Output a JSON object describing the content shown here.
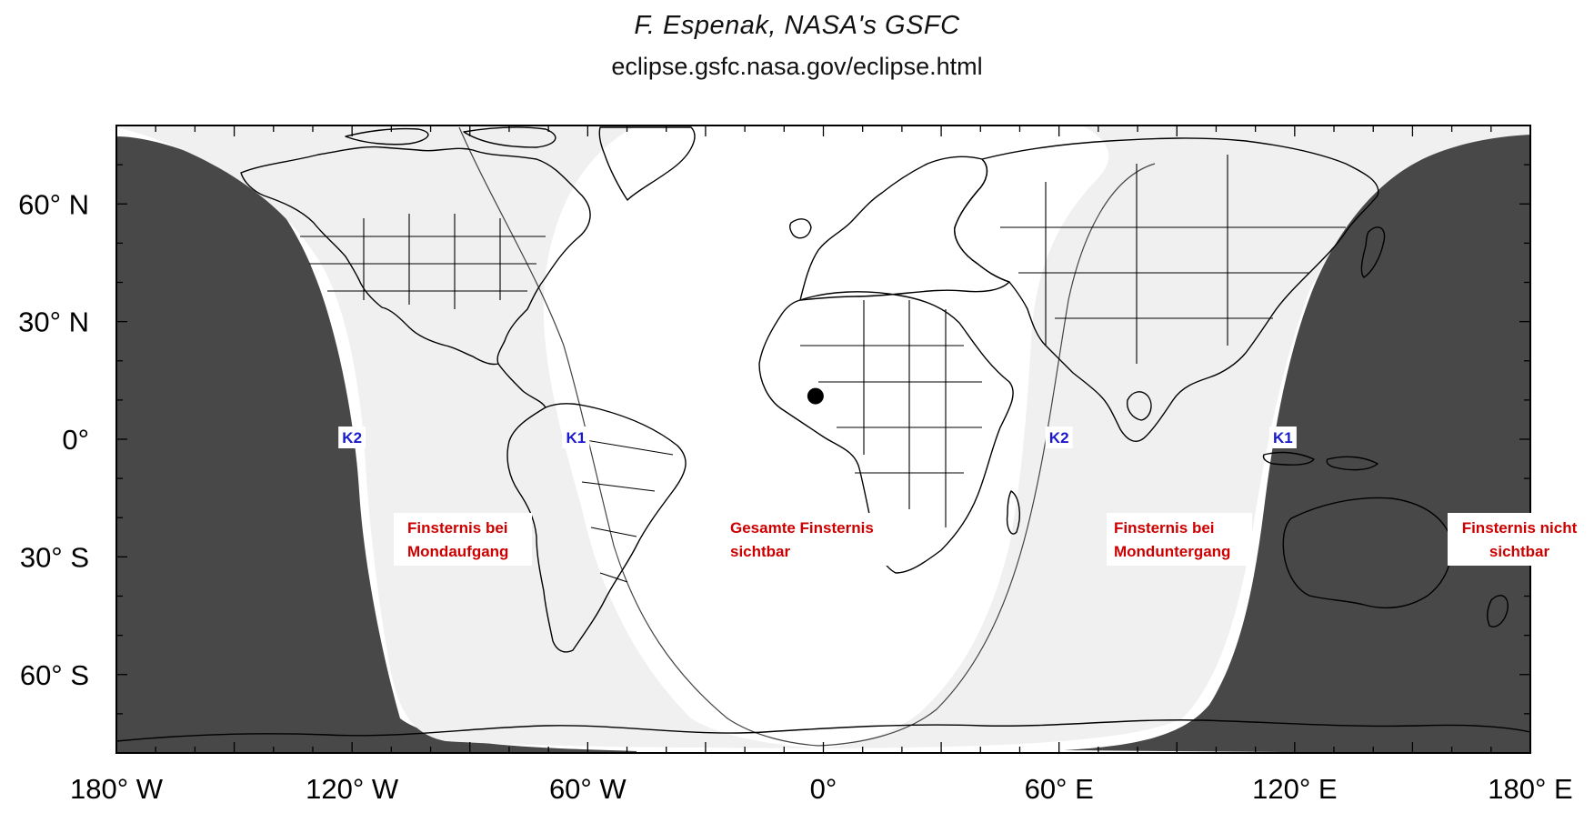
{
  "credits": {
    "author": "F. Espenak, NASA's GSFC",
    "url": "eclipse.gsfc.nasa.gov/eclipse.html"
  },
  "map": {
    "projection": "equirectangular",
    "lon_range": [
      -180,
      180
    ],
    "lat_range": [
      -80,
      80
    ],
    "latitude_labels": [
      {
        "lat": 60,
        "text": "60° N"
      },
      {
        "lat": 30,
        "text": "30° N"
      },
      {
        "lat": 0,
        "text": "0°"
      },
      {
        "lat": -30,
        "text": "30° S"
      },
      {
        "lat": -60,
        "text": "60° S"
      }
    ],
    "longitude_labels": [
      {
        "lon": -180,
        "text": "180° W"
      },
      {
        "lon": -120,
        "text": "120° W"
      },
      {
        "lon": -60,
        "text": "60° W"
      },
      {
        "lon": 0,
        "text": "0°"
      },
      {
        "lon": 60,
        "text": "60° E"
      },
      {
        "lon": 120,
        "text": "120° E"
      },
      {
        "lon": 180,
        "text": "180° E"
      }
    ],
    "colors": {
      "not_visible": "#484848",
      "partial_visible": "#f0f0f0",
      "fully_visible": "#ffffff",
      "zone_text": "#cc0000",
      "contact_text": "#1a1acc"
    },
    "sub_lunar_point": {
      "lon": -2,
      "lat": 11
    },
    "zones": [
      {
        "id": "rise",
        "lines": [
          "Finsternis bei",
          "Mondaufgang"
        ]
      },
      {
        "id": "total",
        "lines": [
          "Gesamte Finsternis",
          "sichtbar"
        ]
      },
      {
        "id": "set",
        "lines": [
          "Finsternis bei",
          "Monduntergang"
        ]
      },
      {
        "id": "none",
        "lines": [
          "Finsternis nicht",
          "sichtbar"
        ]
      }
    ],
    "contacts": [
      {
        "id": "K2-west",
        "text": "K2",
        "lon": -120,
        "lat": 0
      },
      {
        "id": "K1-west",
        "text": "K1",
        "lon": -63,
        "lat": 0
      },
      {
        "id": "K2-east",
        "text": "K2",
        "lon": 60,
        "lat": 0
      },
      {
        "id": "K1-east",
        "text": "K1",
        "lon": 117,
        "lat": 0
      }
    ]
  }
}
